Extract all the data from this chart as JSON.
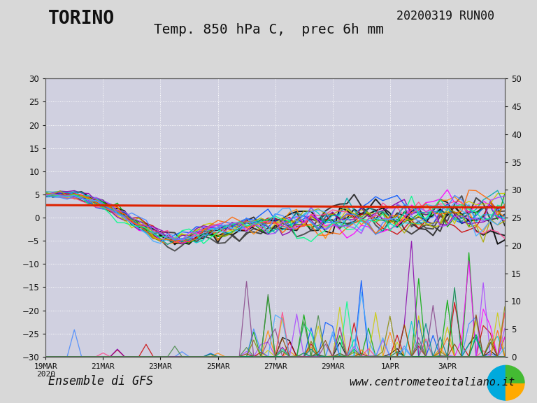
{
  "title_left": "TORINO",
  "title_right": "20200319 RUN00",
  "subtitle": "Temp. 850 hPa C,  prec 6h mm",
  "footer_left": "Ensemble di GFS",
  "footer_right": "www.centrometeoitaliano.it",
  "left_ylim": [
    -30,
    30
  ],
  "right_ylim": [
    0,
    50
  ],
  "left_yticks": [
    -30,
    -25,
    -20,
    -15,
    -10,
    -5,
    0,
    5,
    10,
    15,
    20,
    25,
    30
  ],
  "right_yticks": [
    0,
    5,
    10,
    15,
    20,
    25,
    30,
    35,
    40,
    45,
    50
  ],
  "x_labels": [
    "19MAR\n2020",
    "21MAR",
    "23MAR",
    "25MAR",
    "27MAR",
    "29MAR",
    "1APR",
    "3APR"
  ],
  "background_color": "#d8d8d8",
  "plot_bg_color": "#d0d0e0",
  "grid_color": "#ffffff",
  "n_ensemble": 21,
  "seed": 7,
  "temp_colors": [
    "#000000",
    "#111111",
    "#222222",
    "#333333",
    "#444444",
    "#cc0000",
    "#00aa00",
    "#0055ff",
    "#ff8800",
    "#ff00ff",
    "#00cccc",
    "#cccc00",
    "#8800aa",
    "#00aaaa",
    "#aaaa00",
    "#ff4488",
    "#4488ff",
    "#ff6600",
    "#00ff88",
    "#aa44ff",
    "#44aaff"
  ],
  "prec_colors": [
    "#000000",
    "#cc0000",
    "#00aa00",
    "#0055ff",
    "#ff8800",
    "#ff00ff",
    "#00cccc",
    "#cccc00",
    "#8800aa",
    "#ff4488",
    "#4488ff",
    "#ff6600",
    "#00ff88",
    "#aa44ff",
    "#44aaff",
    "#888800",
    "#008888",
    "#884400",
    "#008844",
    "#884488",
    "#448844"
  ]
}
